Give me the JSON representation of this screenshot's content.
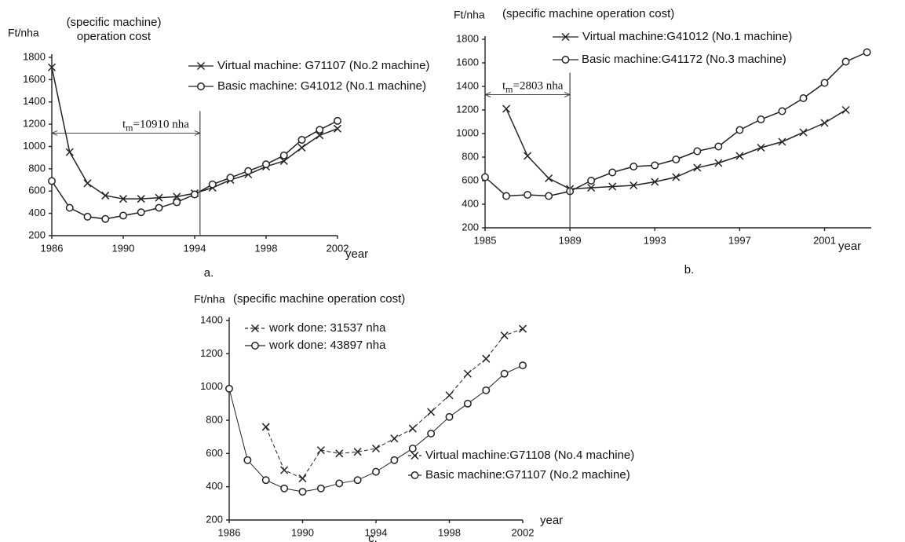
{
  "chart_data": [
    {
      "type": "line",
      "caption": "a.",
      "y_label": "Ft/nha",
      "y_label_note": "(specific machine) operation cost",
      "x_label": "year",
      "x": [
        1986,
        1987,
        1988,
        1989,
        1990,
        1991,
        1992,
        1993,
        1994,
        1995,
        1996,
        1997,
        1998,
        1999,
        2000,
        2001,
        2002
      ],
      "xlim": [
        1986,
        2002
      ],
      "xticks": [
        1986,
        1990,
        1994,
        1998,
        2002
      ],
      "ylim": [
        200,
        1800
      ],
      "yticks": [
        200,
        400,
        600,
        800,
        1000,
        1200,
        1400,
        1600,
        1800
      ],
      "series": [
        {
          "name": "Virtual machine: G71107 (No.2 machine)",
          "marker": "x",
          "color": "#222",
          "values": [
            1710,
            950,
            670,
            560,
            530,
            530,
            540,
            550,
            580,
            630,
            700,
            750,
            820,
            870,
            990,
            1100,
            1160
          ]
        },
        {
          "name": "Basic machine: G41012 (No.1 machine)",
          "marker": "o",
          "color": "#222",
          "values": [
            690,
            450,
            370,
            350,
            380,
            410,
            450,
            500,
            570,
            660,
            720,
            780,
            840,
            920,
            1060,
            1150,
            1230
          ]
        }
      ],
      "annotation": {
        "symbol": "t",
        "subscript": "m",
        "text": "=10910 nha",
        "x": [
          1986,
          1994.3
        ],
        "y": 1120
      }
    },
    {
      "type": "line",
      "caption": "b.",
      "y_label": "Ft/nha",
      "y_label_note": "(specific machine operation cost)",
      "x_label": "year",
      "x": [
        1985,
        1986,
        1987,
        1988,
        1989,
        1990,
        1991,
        1992,
        1993,
        1994,
        1995,
        1996,
        1997,
        1998,
        1999,
        2000,
        2001,
        2002,
        2003
      ],
      "xlim": [
        1985,
        2003.2
      ],
      "xticks": [
        1985,
        1989,
        1993,
        1997,
        2001
      ],
      "ylim": [
        200,
        1800
      ],
      "yticks": [
        200,
        400,
        600,
        800,
        1000,
        1200,
        1400,
        1600,
        1800
      ],
      "series": [
        {
          "name": "Virtual machine:G41012 (No.1 machine)",
          "marker": "x",
          "color": "#222",
          "values": [
            null,
            1210,
            810,
            620,
            530,
            540,
            550,
            560,
            590,
            630,
            710,
            750,
            810,
            880,
            930,
            1010,
            1090,
            1200,
            null
          ]
        },
        {
          "name": "Basic machine:G41172 (No.3 machine)",
          "marker": "o",
          "color": "#222",
          "values": [
            630,
            470,
            480,
            470,
            510,
            600,
            670,
            720,
            730,
            780,
            850,
            890,
            1030,
            1120,
            1190,
            1300,
            1430,
            1610,
            1690
          ]
        }
      ],
      "annotation": {
        "symbol": "t",
        "subscript": "m",
        "text": "=2803 nha",
        "x": [
          1985,
          1989
        ],
        "y": 1330
      }
    },
    {
      "type": "line",
      "caption": "c.",
      "y_label": "Ft/nha",
      "y_label_note": "(specific machine operation cost)",
      "x_label": "year",
      "x": [
        1986,
        1987,
        1988,
        1989,
        1990,
        1991,
        1992,
        1993,
        1994,
        1995,
        1996,
        1997,
        1998,
        1999,
        2000,
        2001,
        2002
      ],
      "xlim": [
        1986,
        2002
      ],
      "xticks": [
        1986,
        1990,
        1994,
        1998,
        2002
      ],
      "ylim": [
        200,
        1400
      ],
      "yticks": [
        200,
        400,
        600,
        800,
        1000,
        1200,
        1400
      ],
      "series": [
        {
          "name": "Virtual machine:G71108 (No.4 machine)",
          "work_done": "work done: 31537 nha",
          "marker": "x",
          "color": "#222",
          "line_style": "dashed",
          "values": [
            null,
            null,
            760,
            500,
            450,
            620,
            600,
            610,
            630,
            690,
            750,
            850,
            950,
            1080,
            1170,
            1310,
            1350
          ]
        },
        {
          "name": "Basic machine:G71107 (No.2 machine)",
          "work_done": "work done: 43897 nha",
          "marker": "o",
          "color": "#222",
          "line_style": "solid",
          "values": [
            990,
            560,
            440,
            390,
            370,
            390,
            420,
            440,
            490,
            560,
            630,
            720,
            820,
            900,
            980,
            1080,
            1130
          ]
        }
      ]
    }
  ]
}
